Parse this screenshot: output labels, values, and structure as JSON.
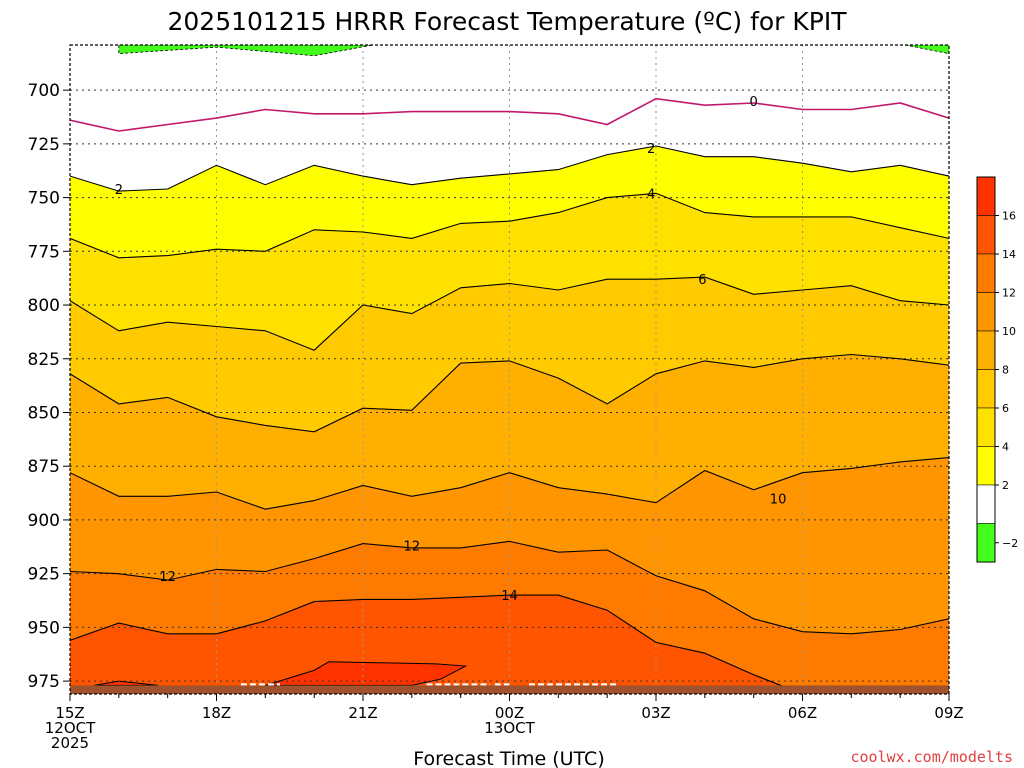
{
  "chart_data": {
    "type": "contour",
    "title": "2025101215 HRRR Forecast Temperature (ºC) for KPIT",
    "xlabel": "Forecast Time (UTC)",
    "ylabel": "",
    "x_hours": [
      0,
      1,
      2,
      3,
      4,
      5,
      6,
      7,
      8,
      9,
      10,
      11,
      12,
      13,
      14,
      15,
      16,
      17,
      18
    ],
    "x_ticks": [
      {
        "hour": 0,
        "lines": [
          "15Z",
          "12OCT",
          "2025"
        ]
      },
      {
        "hour": 3,
        "lines": [
          "18Z"
        ]
      },
      {
        "hour": 6,
        "lines": [
          "21Z"
        ]
      },
      {
        "hour": 9,
        "lines": [
          "00Z",
          "13OCT"
        ]
      },
      {
        "hour": 12,
        "lines": [
          "03Z"
        ]
      },
      {
        "hour": 15,
        "lines": [
          "06Z"
        ]
      },
      {
        "hour": 18,
        "lines": [
          "09Z"
        ]
      }
    ],
    "y_ticks": [
      700,
      725,
      750,
      775,
      800,
      825,
      850,
      875,
      900,
      925,
      950,
      975
    ],
    "ylim": [
      981,
      679
    ],
    "surface_pressure": 977,
    "contours": [
      {
        "level": 0,
        "pressures": [
          714,
          719,
          716,
          713,
          709,
          711,
          711,
          710,
          710,
          710,
          711,
          716,
          704,
          707,
          706,
          709,
          709,
          706,
          713
        ]
      },
      {
        "level": 2,
        "pressures": [
          740,
          747,
          746,
          735,
          744,
          735,
          740,
          744,
          741,
          739,
          737,
          730,
          726,
          731,
          731,
          734,
          738,
          735,
          740
        ]
      },
      {
        "level": 4,
        "pressures": [
          769,
          778,
          777,
          774,
          775,
          765,
          766,
          769,
          762,
          761,
          757,
          750,
          748,
          757,
          759,
          759,
          759,
          764,
          769
        ]
      },
      {
        "level": 6,
        "pressures": [
          798,
          812,
          808,
          810,
          812,
          821,
          800,
          804,
          792,
          790,
          793,
          788,
          788,
          787,
          795,
          793,
          791,
          798,
          800
        ]
      },
      {
        "level": 8,
        "pressures": [
          832,
          846,
          843,
          852,
          856,
          859,
          848,
          849,
          827,
          826,
          834,
          846,
          832,
          826,
          829,
          825,
          823,
          825,
          828
        ]
      },
      {
        "level": 10,
        "pressures": [
          878,
          889,
          889,
          887,
          895,
          891,
          884,
          889,
          885,
          878,
          885,
          888,
          892,
          877,
          886,
          878,
          876,
          873,
          871
        ]
      },
      {
        "level": 12,
        "pressures": [
          924,
          925,
          928,
          923,
          924,
          918,
          911,
          913,
          913,
          910,
          915,
          914,
          926,
          933,
          946,
          952,
          953,
          951,
          946
        ]
      },
      {
        "level": 14,
        "pressures": [
          956,
          948,
          953,
          953,
          947,
          938,
          937,
          937,
          936,
          935,
          935,
          942,
          957,
          962,
          972,
          981,
          981,
          981,
          981
        ]
      }
    ],
    "contour_labels": [
      {
        "level": 0,
        "hour": 14.0,
        "pressure": 705
      },
      {
        "level": 2,
        "hour": 1.0,
        "pressure": 746
      },
      {
        "level": 2,
        "hour": 11.9,
        "pressure": 727
      },
      {
        "level": 4,
        "hour": 11.9,
        "pressure": 748
      },
      {
        "level": 6,
        "hour": 12.95,
        "pressure": 788
      },
      {
        "level": 10,
        "hour": 14.5,
        "pressure": 890
      },
      {
        "level": 12,
        "hour": 2.0,
        "pressure": 926
      },
      {
        "level": 12,
        "hour": 7.0,
        "pressure": 912
      },
      {
        "level": 14,
        "hour": 9.0,
        "pressure": 935
      }
    ],
    "legend_placement": "right",
    "colorbar": {
      "labels": [
        -2,
        2,
        4,
        6,
        8,
        10,
        12,
        14,
        16
      ],
      "bins": [
        {
          "range": [
            -4,
            0
          ],
          "color": "#44ff1c"
        },
        {
          "range": [
            0,
            2
          ],
          "color": "#ffffff"
        },
        {
          "range": [
            2,
            4
          ],
          "color": "#ffff00"
        },
        {
          "range": [
            4,
            6
          ],
          "color": "#ffe100"
        },
        {
          "range": [
            6,
            8
          ],
          "color": "#ffcb00"
        },
        {
          "range": [
            8,
            10
          ],
          "color": "#ffaf00"
        },
        {
          "range": [
            10,
            12
          ],
          "color": "#ff9500"
        },
        {
          "range": [
            12,
            14
          ],
          "color": "#ff7b00"
        },
        {
          "range": [
            14,
            16
          ],
          "color": "#ff5500"
        },
        {
          "range": [
            16,
            18
          ],
          "color": "#ff3300"
        }
      ]
    },
    "ground_color": "#a0522d",
    "zero_contour_color": "#c2186b"
  },
  "watermark": "coolwx.com/modelts"
}
